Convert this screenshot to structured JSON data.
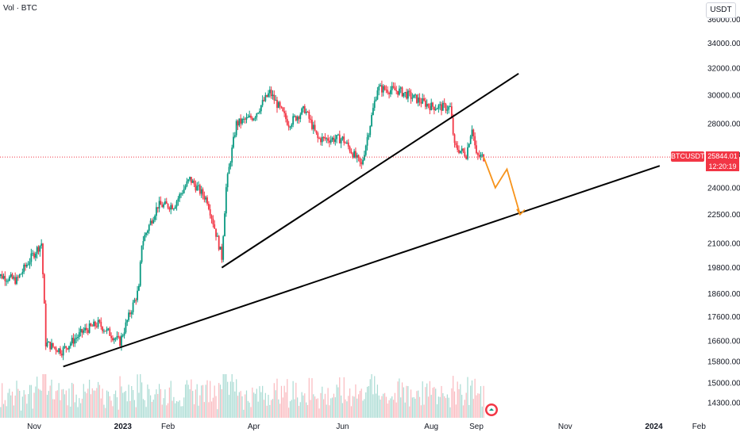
{
  "header": {
    "volume_label": "Vol · BTC"
  },
  "currency_button": "USDT",
  "price_tag": {
    "symbol": "BTCUSDT",
    "price": "25844.01",
    "countdown": "12:20:19"
  },
  "colors": {
    "up": "#089981",
    "down": "#f23645",
    "trendline": "#000000",
    "projection": "#f7931a",
    "price_line": "#f23645"
  },
  "chart_data": {
    "type": "candlestick",
    "symbol": "BTCUSDT",
    "ylim": [
      13500,
      37000
    ],
    "y_scale": "log",
    "y_ticks": [
      "14300.00",
      "15000.00",
      "15800.00",
      "16600.00",
      "17600.00",
      "18600.00",
      "19800.00",
      "21000.00",
      "22500.00",
      "24000.00",
      "26000.00",
      "28000.00",
      "30000.00",
      "32000.00",
      "34000.00",
      "36000.00"
    ],
    "x_ticks": [
      {
        "label": "Nov",
        "date": "2022-11-01",
        "bold": false
      },
      {
        "label": "2023",
        "date": "2023-01-01",
        "bold": true
      },
      {
        "label": "Feb",
        "date": "2023-02-01",
        "bold": false
      },
      {
        "label": "Apr",
        "date": "2023-04-01",
        "bold": false
      },
      {
        "label": "Jun",
        "date": "2023-06-01",
        "bold": false
      },
      {
        "label": "Aug",
        "date": "2023-08-01",
        "bold": false
      },
      {
        "label": "Sep",
        "date": "2023-09-01",
        "bold": false
      },
      {
        "label": "Nov",
        "date": "2023-11-01",
        "bold": false
      },
      {
        "label": "2024",
        "date": "2024-01-01",
        "bold": true
      },
      {
        "label": "Feb",
        "date": "2024-02-01",
        "bold": false
      }
    ],
    "price_anchors": [
      {
        "date": "2022-10-05",
        "close": 19500
      },
      {
        "date": "2022-10-20",
        "close": 19200
      },
      {
        "date": "2022-11-01",
        "close": 20500
      },
      {
        "date": "2022-11-06",
        "close": 21000
      },
      {
        "date": "2022-11-09",
        "close": 16500
      },
      {
        "date": "2022-11-20",
        "close": 16200
      },
      {
        "date": "2022-12-05",
        "close": 17000
      },
      {
        "date": "2022-12-15",
        "close": 17300
      },
      {
        "date": "2022-12-30",
        "close": 16550
      },
      {
        "date": "2023-01-12",
        "close": 18800
      },
      {
        "date": "2023-01-14",
        "close": 21000
      },
      {
        "date": "2023-01-25",
        "close": 23000
      },
      {
        "date": "2023-02-05",
        "close": 23000
      },
      {
        "date": "2023-02-16",
        "close": 24500
      },
      {
        "date": "2023-02-28",
        "close": 23300
      },
      {
        "date": "2023-03-10",
        "close": 20300
      },
      {
        "date": "2023-03-13",
        "close": 24000
      },
      {
        "date": "2023-03-20",
        "close": 28000
      },
      {
        "date": "2023-04-01",
        "close": 28500
      },
      {
        "date": "2023-04-12",
        "close": 30200
      },
      {
        "date": "2023-04-25",
        "close": 28000
      },
      {
        "date": "2023-05-06",
        "close": 29000
      },
      {
        "date": "2023-05-15",
        "close": 27000
      },
      {
        "date": "2023-06-01",
        "close": 27000
      },
      {
        "date": "2023-06-14",
        "close": 25300
      },
      {
        "date": "2023-06-20",
        "close": 28000
      },
      {
        "date": "2023-06-25",
        "close": 30500
      },
      {
        "date": "2023-07-10",
        "close": 30300
      },
      {
        "date": "2023-07-20",
        "close": 29800
      },
      {
        "date": "2023-08-01",
        "close": 29200
      },
      {
        "date": "2023-08-14",
        "close": 29100
      },
      {
        "date": "2023-08-17",
        "close": 26500
      },
      {
        "date": "2023-08-25",
        "close": 26000
      },
      {
        "date": "2023-08-29",
        "close": 27800
      },
      {
        "date": "2023-09-01",
        "close": 25900
      },
      {
        "date": "2023-09-06",
        "close": 25844
      }
    ],
    "trendlines": [
      {
        "points": [
          {
            "date": "2022-11-21",
            "value": 15600
          },
          {
            "date": "2024-01-05",
            "value": 25300
          }
        ]
      },
      {
        "points": [
          {
            "date": "2023-03-10",
            "value": 19800
          },
          {
            "date": "2023-09-30",
            "value": 31600
          }
        ]
      }
    ],
    "projection": [
      {
        "date": "2023-09-06",
        "value": 25844
      },
      {
        "date": "2023-09-14",
        "value": 24000
      },
      {
        "date": "2023-09-22",
        "value": 25100
      },
      {
        "date": "2023-10-01",
        "value": 22500
      }
    ],
    "last_price": 25844.01
  }
}
